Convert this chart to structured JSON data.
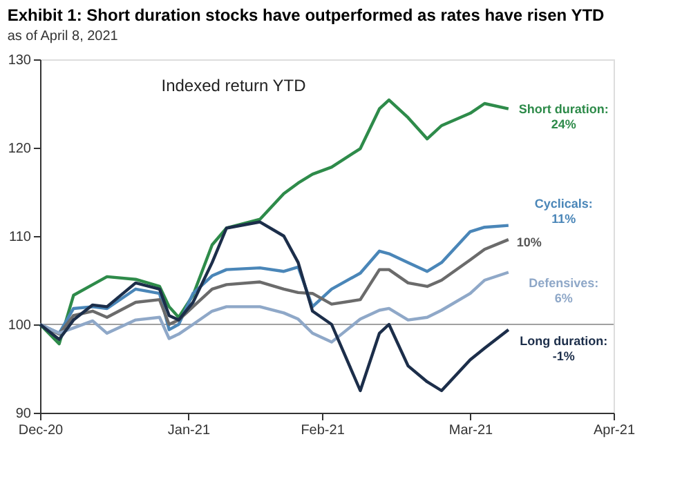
{
  "chart_data": {
    "type": "line",
    "title": "Exhibit 1: Short duration stocks have outperformed as rates have risen YTD",
    "subtitle": "as of April 8, 2021",
    "x": [
      "2020-12-31",
      "2021-01-04",
      "2021-01-07",
      "2021-01-11",
      "2021-01-14",
      "2021-01-20",
      "2021-01-25",
      "2021-01-27",
      "2021-01-29",
      "2021-02-01",
      "2021-02-05",
      "2021-02-08",
      "2021-02-15",
      "2021-02-20",
      "2021-02-23",
      "2021-02-26",
      "2021-03-02",
      "2021-03-08",
      "2021-03-12",
      "2021-03-14",
      "2021-03-18",
      "2021-03-22",
      "2021-03-25",
      "2021-03-31",
      "2021-04-03",
      "2021-04-08"
    ],
    "series": [
      {
        "name": "Short duration: 24%",
        "color": "#2e8b4a",
        "values": [
          100,
          97.8,
          103.3,
          104.5,
          105.4,
          105.1,
          104.3,
          102,
          100.8,
          103.3,
          109,
          110.9,
          111.9,
          114.8,
          116,
          117,
          117.8,
          119.9,
          124.4,
          125.4,
          123.4,
          121,
          122.5,
          123.9,
          125,
          124.4
        ]
      },
      {
        "name": "Cyclicals: 11%",
        "color": "#4a86b8",
        "values": [
          100,
          99,
          101.8,
          102,
          101.8,
          104,
          103.5,
          99.4,
          100,
          103.5,
          105.5,
          106.2,
          106.4,
          106,
          106.5,
          102,
          104,
          105.8,
          108.3,
          108,
          107,
          106,
          107,
          110.5,
          111,
          111.2
        ]
      },
      {
        "color": "#6b6b6b",
        "values": [
          100,
          98.9,
          101,
          101.5,
          100.8,
          102.5,
          102.8,
          100,
          100.5,
          102,
          104,
          104.5,
          104.8,
          104,
          103.6,
          103.5,
          102.3,
          102.8,
          106.2,
          106.2,
          104.7,
          104.3,
          105,
          107.3,
          108.5,
          109.6
        ]
      },
      {
        "name": "Defensives: 6%",
        "color": "#8fa8c8",
        "values": [
          100,
          99,
          99.6,
          100.4,
          99,
          100.5,
          100.8,
          98.4,
          98.9,
          100,
          101.5,
          102,
          102,
          101.3,
          100.6,
          99,
          98,
          100.6,
          101.6,
          101.8,
          100.5,
          100.8,
          101.6,
          103.5,
          105,
          105.9
        ]
      },
      {
        "name": "Long duration: -1%",
        "color": "#1c2e4a",
        "values": [
          100,
          98.3,
          100.5,
          102.2,
          102,
          104.7,
          104,
          101,
          100.5,
          102.5,
          107,
          110.9,
          111.6,
          110,
          107,
          101.5,
          100,
          92.5,
          99,
          100,
          95.3,
          93.5,
          92.5,
          96,
          97.3,
          99.4
        ]
      }
    ],
    "annotations": [
      "Indexed return YTD",
      {
        "text": "10%",
        "x": "2021-04-08",
        "y": 109.6
      }
    ],
    "xlim": [
      "2020-12-31",
      "2021-04-30"
    ],
    "xticks": [
      {
        "value": "2020-12-31",
        "label": "Dec-20"
      },
      {
        "value": "2021-01-31",
        "label": "Jan-21"
      },
      {
        "value": "2021-02-28",
        "label": "Feb-21"
      },
      {
        "value": "2021-03-31",
        "label": "Mar-21"
      },
      {
        "value": "2021-04-30",
        "label": "Apr-21"
      }
    ],
    "ylim": [
      90,
      130
    ],
    "yticks": [
      90,
      100,
      110,
      120,
      130
    ],
    "ref_lines": [
      {
        "axis": "y",
        "value": 100,
        "color": "#a0a0a0"
      }
    ],
    "grid": false,
    "marker": "none",
    "line_style": "solid"
  }
}
